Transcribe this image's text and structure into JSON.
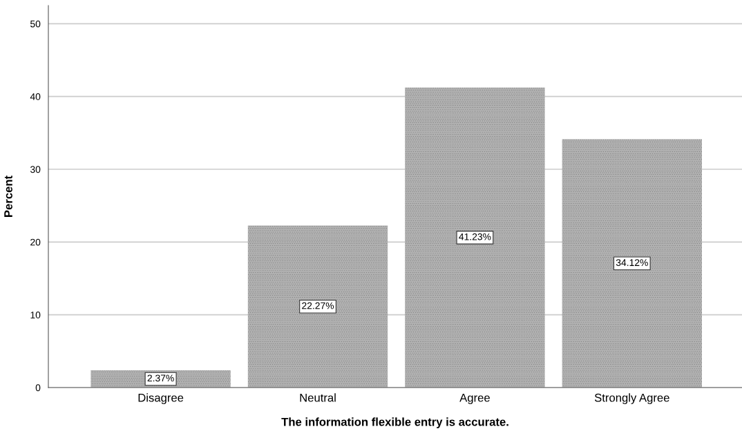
{
  "chart_data": {
    "type": "bar",
    "xlabel": "The information flexible entry is accurate.",
    "ylabel": "Percent",
    "categories": [
      "Disagree",
      "Neutral",
      "Agree",
      "Strongly Agree"
    ],
    "values": [
      2.37,
      22.27,
      41.23,
      34.12
    ],
    "value_labels": [
      "2.37%",
      "22.27%",
      "41.23%",
      "34.12%"
    ],
    "color": "#b0b0b0",
    "ylim": [
      0,
      52.5
    ],
    "yticks": [
      0,
      10,
      20,
      30,
      40,
      50
    ],
    "grid": "y"
  }
}
